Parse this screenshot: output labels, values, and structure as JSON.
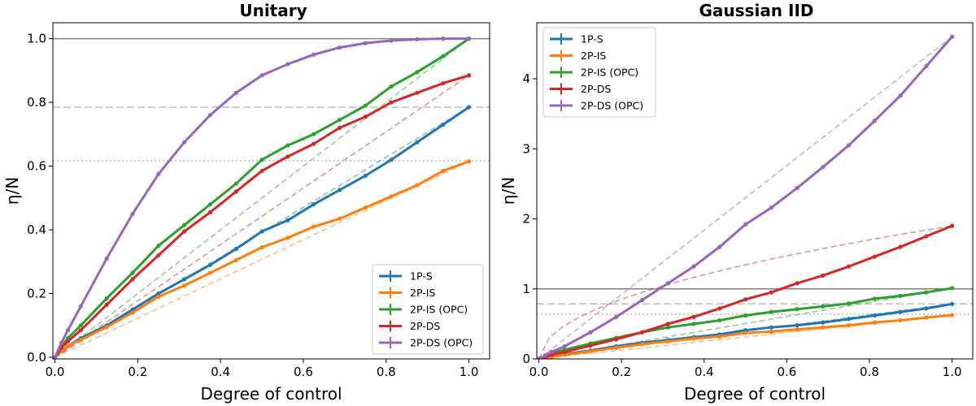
{
  "chart_data": [
    {
      "type": "line",
      "title": "Unitary",
      "xlabel": "Degree of control",
      "ylabel": "η/N",
      "xlim": [
        -0.005,
        1.05
      ],
      "ylim": [
        -0.005,
        1.05
      ],
      "xticks": [
        0.0,
        0.2,
        0.4,
        0.6,
        0.8,
        1.0
      ],
      "xtick_labels": [
        "0.0",
        "0.2",
        "0.4",
        "0.6",
        "0.8",
        "1.0"
      ],
      "yticks": [
        0.0,
        0.2,
        0.4,
        0.6,
        0.8,
        1.0
      ],
      "ytick_labels": [
        "0.0",
        "0.2",
        "0.4",
        "0.6",
        "0.8",
        "1.0"
      ],
      "grid": false,
      "legend_position": "bottom-right",
      "reference_lines": [
        {
          "y": 1.0,
          "style": "solid",
          "color": "#808080"
        },
        {
          "y": 0.785,
          "style": "dashed",
          "color": "#bdbdbd"
        },
        {
          "y": 0.617,
          "style": "dotted",
          "color": "#bdbdbd"
        }
      ],
      "x": [
        0.0,
        0.0156,
        0.0313,
        0.0625,
        0.125,
        0.1875,
        0.25,
        0.3125,
        0.375,
        0.4375,
        0.5,
        0.5625,
        0.625,
        0.6875,
        0.75,
        0.8125,
        0.875,
        0.9375,
        1.0
      ],
      "series": [
        {
          "name": "1P-S",
          "color": "#1f77b4",
          "values": [
            0.0,
            0.02,
            0.035,
            0.06,
            0.1,
            0.15,
            0.2,
            0.245,
            0.29,
            0.34,
            0.395,
            0.43,
            0.48,
            0.525,
            0.57,
            0.62,
            0.675,
            0.73,
            0.785
          ],
          "trend": [
            0.0,
            0.785
          ]
        },
        {
          "name": "2P-IS",
          "color": "#ff7f0e",
          "values": [
            0.0,
            0.02,
            0.035,
            0.055,
            0.095,
            0.14,
            0.19,
            0.225,
            0.265,
            0.305,
            0.345,
            0.375,
            0.41,
            0.435,
            0.47,
            0.505,
            0.54,
            0.585,
            0.615
          ],
          "trend": [
            0.0,
            0.615
          ]
        },
        {
          "name": "2P-IS (OPC)",
          "color": "#2ca02c",
          "values": [
            0.0,
            0.035,
            0.06,
            0.1,
            0.185,
            0.265,
            0.35,
            0.415,
            0.48,
            0.545,
            0.62,
            0.665,
            0.7,
            0.745,
            0.79,
            0.85,
            0.895,
            0.945,
            1.0
          ],
          "trend": [
            0.0,
            1.0
          ]
        },
        {
          "name": "2P-DS",
          "color": "#d62728",
          "values": [
            0.0,
            0.03,
            0.05,
            0.085,
            0.165,
            0.245,
            0.32,
            0.395,
            0.455,
            0.52,
            0.585,
            0.63,
            0.67,
            0.72,
            0.755,
            0.8,
            0.83,
            0.86,
            0.885
          ],
          "trend": [
            0.0,
            0.885
          ]
        },
        {
          "name": "2P-DS (OPC)",
          "color": "#9467bd",
          "values": [
            0.0,
            0.045,
            0.085,
            0.16,
            0.31,
            0.45,
            0.575,
            0.675,
            0.76,
            0.83,
            0.885,
            0.92,
            0.95,
            0.972,
            0.986,
            0.994,
            0.998,
            1.0,
            1.0
          ],
          "trend": null
        }
      ]
    },
    {
      "type": "line",
      "title": "Gaussian IID",
      "xlabel": "Degree of control",
      "ylabel": "η/N",
      "xlim": [
        -0.005,
        1.05
      ],
      "ylim": [
        0.0,
        4.8
      ],
      "xticks": [
        0.0,
        0.2,
        0.4,
        0.6,
        0.8,
        1.0
      ],
      "xtick_labels": [
        "0.0",
        "0.2",
        "0.4",
        "0.6",
        "0.8",
        "1.0"
      ],
      "yticks": [
        0,
        1,
        2,
        3,
        4
      ],
      "ytick_labels": [
        "0",
        "1",
        "2",
        "3",
        "4"
      ],
      "grid": false,
      "legend_position": "top-left",
      "reference_lines": [
        {
          "y": 1.0,
          "style": "solid",
          "color": "#808080"
        },
        {
          "y": 0.785,
          "style": "dashed",
          "color": "#bdbdbd"
        },
        {
          "y": 0.637,
          "style": "dotted",
          "color": "#bdbdbd"
        }
      ],
      "x": [
        0.0,
        0.0156,
        0.0313,
        0.0625,
        0.125,
        0.1875,
        0.25,
        0.3125,
        0.375,
        0.4375,
        0.5,
        0.5625,
        0.625,
        0.6875,
        0.75,
        0.8125,
        0.875,
        0.9375,
        1.0
      ],
      "series": [
        {
          "name": "1P-S",
          "color": "#1f77b4",
          "values": [
            0.0,
            0.02,
            0.04,
            0.07,
            0.12,
            0.18,
            0.23,
            0.27,
            0.31,
            0.35,
            0.41,
            0.45,
            0.48,
            0.52,
            0.57,
            0.62,
            0.67,
            0.72,
            0.785
          ],
          "trend": [
            0.0,
            0.785
          ]
        },
        {
          "name": "2P-IS",
          "color": "#ff7f0e",
          "values": [
            0.0,
            0.02,
            0.03,
            0.06,
            0.11,
            0.16,
            0.21,
            0.25,
            0.29,
            0.32,
            0.37,
            0.39,
            0.42,
            0.45,
            0.48,
            0.52,
            0.55,
            0.59,
            0.625
          ],
          "trend": [
            0.0,
            0.625
          ]
        },
        {
          "name": "2P-IS (OPC)",
          "color": "#2ca02c",
          "values": [
            0.0,
            0.04,
            0.08,
            0.13,
            0.22,
            0.3,
            0.38,
            0.45,
            0.5,
            0.55,
            0.62,
            0.67,
            0.71,
            0.75,
            0.79,
            0.86,
            0.9,
            0.95,
            1.01
          ],
          "trend": [
            0.0,
            1.01
          ]
        },
        {
          "name": "2P-DS",
          "color": "#d62728",
          "values": [
            0.0,
            0.03,
            0.06,
            0.1,
            0.19,
            0.28,
            0.38,
            0.5,
            0.6,
            0.72,
            0.85,
            0.95,
            1.08,
            1.19,
            1.32,
            1.46,
            1.6,
            1.75,
            1.9
          ],
          "trend": "sqrt"
        },
        {
          "name": "2P-DS (OPC)",
          "color": "#9467bd",
          "values": [
            0.0,
            0.05,
            0.1,
            0.18,
            0.38,
            0.6,
            0.84,
            1.08,
            1.32,
            1.6,
            1.92,
            2.16,
            2.44,
            2.74,
            3.05,
            3.4,
            3.76,
            4.18,
            4.6
          ],
          "trend": [
            0.0,
            4.6
          ]
        }
      ]
    }
  ]
}
